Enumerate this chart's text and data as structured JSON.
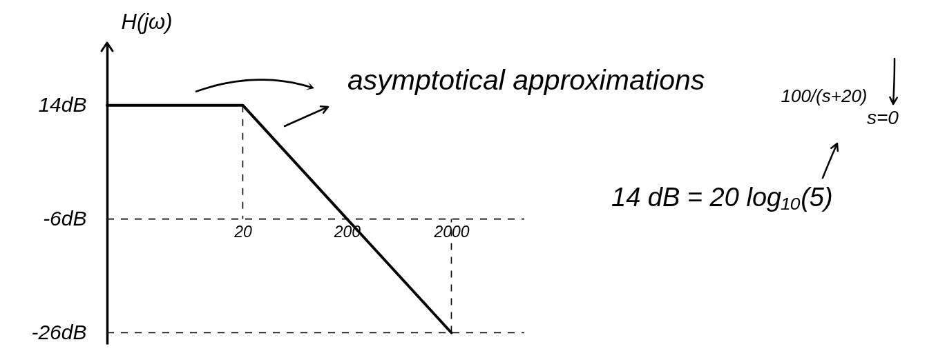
{
  "chart_data": {
    "type": "line",
    "ylabel": "H(jω)",
    "x": [
      1,
      20,
      200,
      2000
    ],
    "series": [
      {
        "color": "#000000",
        "values": [
          14,
          14,
          -6,
          -26
        ]
      }
    ],
    "log": "x",
    "line_style": "solid",
    "xlim": [
      1,
      10000
    ],
    "xticks": [
      20,
      200,
      2000
    ],
    "ylim": [
      -28,
      25
    ],
    "yticks": [
      {
        "value": 14,
        "label": "14dB"
      },
      {
        "value": -6,
        "label": "-6dB"
      },
      {
        "value": -26,
        "label": "-26dB"
      }
    ],
    "ref_lines": [
      {
        "axis": "y",
        "value": -6,
        "line_style": "dashed",
        "color": "#000000"
      },
      {
        "axis": "y",
        "value": -26,
        "line_style": "dashed",
        "color": "#000000"
      },
      {
        "axis": "x",
        "value": 20,
        "line_style": "dashed",
        "color": "#000000"
      },
      {
        "axis": "x",
        "value": 2000,
        "line_style": "dashed",
        "color": "#000000"
      }
    ],
    "annotations": [
      "asymptotical approximations",
      "100/(s+20)",
      "s=0",
      "14 dB = 20 log₁₀(5)"
    ]
  }
}
